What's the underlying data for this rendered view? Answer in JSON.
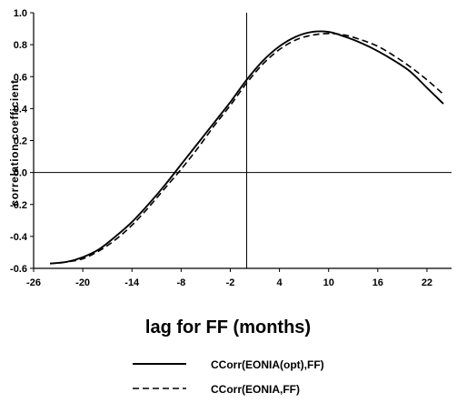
{
  "chart_data": {
    "type": "line",
    "title": "",
    "xlabel": "lag for FF (months)",
    "ylabel": "correlation coefficient",
    "xlim": [
      -26,
      25
    ],
    "ylim": [
      -0.6,
      1.0
    ],
    "xticks": [
      -26,
      -20,
      -14,
      -8,
      -2,
      4,
      10,
      16,
      22
    ],
    "xtick_labels": [
      "-26",
      "-20",
      "-14",
      "-8",
      "-2",
      "4",
      "10",
      "16",
      "22"
    ],
    "yticks": [
      1.0,
      0.8,
      0.6,
      0.4,
      0.2,
      0.0,
      -0.2,
      -0.4,
      -0.6
    ],
    "ytick_labels": [
      "1.0",
      "0.8",
      "0.6",
      "0.4",
      "0.2",
      "0.0",
      "-0.2",
      "-0.4",
      "-0.6"
    ],
    "reference_lines": {
      "x": 0,
      "y": 0
    },
    "grid": false,
    "legend_placement": "bottom",
    "series": [
      {
        "name": "CCorr(EONIA(opt),FF)",
        "style": "solid",
        "color": "#000000",
        "x": [
          -24,
          -22,
          -20,
          -18,
          -16,
          -14,
          -12,
          -10,
          -8,
          -6,
          -4,
          -2,
          0,
          2,
          4,
          6,
          8,
          10,
          12,
          14,
          16,
          18,
          20,
          22,
          24
        ],
        "y": [
          -0.57,
          -0.56,
          -0.53,
          -0.48,
          -0.4,
          -0.31,
          -0.2,
          -0.08,
          0.05,
          0.18,
          0.31,
          0.44,
          0.58,
          0.7,
          0.79,
          0.85,
          0.88,
          0.88,
          0.85,
          0.81,
          0.76,
          0.7,
          0.63,
          0.53,
          0.43
        ]
      },
      {
        "name": "CCorr(EONIA,FF)",
        "style": "dashed",
        "color": "#000000",
        "x": [
          -24,
          -22,
          -20,
          -18,
          -16,
          -14,
          -12,
          -10,
          -8,
          -6,
          -4,
          -2,
          0,
          2,
          4,
          6,
          8,
          10,
          12,
          14,
          16,
          18,
          20,
          22,
          24
        ],
        "y": [
          -0.57,
          -0.56,
          -0.54,
          -0.49,
          -0.42,
          -0.33,
          -0.22,
          -0.1,
          0.02,
          0.15,
          0.29,
          0.42,
          0.56,
          0.68,
          0.77,
          0.83,
          0.86,
          0.87,
          0.86,
          0.83,
          0.79,
          0.73,
          0.66,
          0.58,
          0.49
        ]
      }
    ]
  }
}
